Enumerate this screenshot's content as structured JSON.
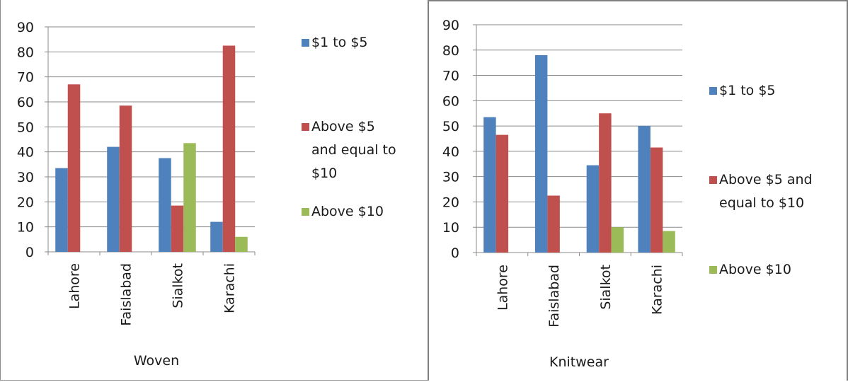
{
  "chart_data": [
    {
      "type": "bar",
      "categories": [
        "Lahore",
        "Faislabad",
        "Sialkot",
        "Karachi"
      ],
      "series": [
        {
          "name": "$1 to $5",
          "color": "#4f81bd",
          "values": [
            33.5,
            42,
            37.5,
            12
          ]
        },
        {
          "name": "Above $5 and equal to $10",
          "color": "#c0504d",
          "values": [
            67,
            58.5,
            18.5,
            82.5
          ]
        },
        {
          "name": "Above $10",
          "color": "#9bbb59",
          "values": [
            0,
            0,
            43.5,
            6
          ]
        }
      ],
      "xlabel": "Woven",
      "ylabel": "",
      "ylim": [
        0,
        90
      ],
      "yticks": [
        "0",
        "10",
        "20",
        "30",
        "40",
        "50",
        "60",
        "70",
        "80",
        "90"
      ],
      "grid": true,
      "legend_position": "right"
    },
    {
      "type": "bar",
      "categories": [
        "Lahore",
        "Faislabad",
        "Sialkot",
        "Karachi"
      ],
      "series": [
        {
          "name": "$1 to $5",
          "color": "#4f81bd",
          "values": [
            53.5,
            78,
            34.5,
            50
          ]
        },
        {
          "name": "Above $5 and equal to $10",
          "color": "#c0504d",
          "values": [
            46.5,
            22.5,
            55,
            41.5
          ]
        },
        {
          "name": "Above $10",
          "color": "#9bbb59",
          "values": [
            0,
            0,
            10,
            8.5
          ]
        }
      ],
      "xlabel": "Knitwear",
      "ylabel": "",
      "ylim": [
        0,
        90
      ],
      "yticks": [
        "0",
        "10",
        "20",
        "30",
        "40",
        "50",
        "60",
        "70",
        "80",
        "90"
      ],
      "grid": true,
      "legend_position": "right"
    }
  ]
}
